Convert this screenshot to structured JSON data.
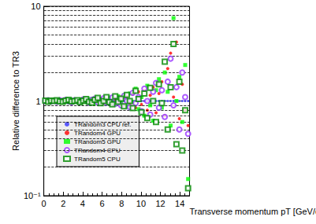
{
  "chart_data": {
    "type": "scatter",
    "x_label": "Transverse momentum pT [GeV/c]",
    "y_label": "Relative difference to TR3",
    "log": "y",
    "grid": true,
    "legend": "lower left",
    "xlim": [
      0,
      15
    ],
    "xticks": [
      0,
      2,
      4,
      6,
      8,
      10,
      12,
      14
    ],
    "ylim": [
      0.1,
      10
    ],
    "yticks": [
      {
        "value": 0.1,
        "label": "10⁻¹"
      },
      1,
      10
    ],
    "x": [
      0.15,
      0.45,
      0.75,
      1.05,
      1.35,
      1.65,
      1.95,
      2.25,
      2.55,
      2.85,
      3.15,
      3.45,
      3.75,
      4.05,
      4.35,
      4.65,
      4.95,
      5.25,
      5.55,
      5.85,
      6.15,
      6.45,
      6.75,
      7.05,
      7.35,
      7.65,
      7.95,
      8.25,
      8.55,
      8.85,
      9.15,
      9.45,
      9.75,
      10.05,
      10.35,
      10.65,
      10.95,
      11.25,
      11.55,
      11.85,
      12.15,
      12.45,
      12.75,
      13.05,
      13.35,
      13.65,
      13.95,
      14.25,
      14.55,
      14.85
    ],
    "series": [
      {
        "name": "TRandom3 CPU ref.",
        "color": "#3333ff",
        "marker": "dot",
        "values": [
          1,
          1,
          1,
          1,
          1,
          1,
          1,
          1,
          1,
          1,
          1,
          1,
          1,
          1,
          1,
          1,
          1,
          1,
          1,
          1,
          1,
          1,
          1,
          1,
          1,
          1,
          1,
          1,
          1,
          1,
          1,
          1,
          1,
          1,
          1,
          1,
          1,
          1,
          1,
          1,
          1,
          1,
          1,
          1,
          1,
          1,
          1,
          1,
          1,
          1
        ]
      },
      {
        "name": "TRandom4 GPU",
        "color": "#ff0000",
        "marker": "circle",
        "values": [
          1.01,
          0.99,
          1.0,
          1.02,
          0.98,
          1.01,
          1.0,
          0.99,
          1.02,
          1.01,
          0.98,
          1.03,
          1.0,
          0.97,
          1.04,
          1.02,
          0.96,
          1.05,
          0.98,
          1.06,
          0.95,
          1.03,
          1.08,
          0.93,
          1.05,
          0.97,
          1.1,
          0.9,
          1.12,
          0.95,
          1.18,
          0.85,
          1.25,
          0.92,
          1.3,
          0.8,
          1.15,
          1.4,
          0.75,
          1.2,
          1.6,
          0.7,
          2.2,
          3.2,
          1.1,
          4.2,
          0.65,
          1.5,
          0.8,
          0.55
        ]
      },
      {
        "name": "TRandom5 GPU",
        "color": "#00ff00",
        "marker": "square",
        "values": [
          0.99,
          1.01,
          1.0,
          0.98,
          1.02,
          1.0,
          1.01,
          0.99,
          0.97,
          1.03,
          1.01,
          0.98,
          1.04,
          1.0,
          0.97,
          1.05,
          1.02,
          0.95,
          1.07,
          0.98,
          1.04,
          0.94,
          1.09,
          1.02,
          0.92,
          1.12,
          0.96,
          1.15,
          0.88,
          1.2,
          0.98,
          1.35,
          0.82,
          1.1,
          0.7,
          1.45,
          0.9,
          0.62,
          1.3,
          1.7,
          0.85,
          2.0,
          1.25,
          0.55,
          7.5,
          1.0,
          1.8,
          0.6,
          2.4,
          0.15
        ]
      },
      {
        "name": "TRandom4 CPU",
        "color": "#9933ff",
        "marker": "open circle",
        "values": [
          1.0,
          1.02,
          0.99,
          1.01,
          0.98,
          1.02,
          1.0,
          1.03,
          0.99,
          0.97,
          1.02,
          1.0,
          0.98,
          1.04,
          1.01,
          0.96,
          1.03,
          1.06,
          0.97,
          1.02,
          1.07,
          0.96,
          1.0,
          1.09,
          0.94,
          1.05,
          0.9,
          1.13,
          1.0,
          0.86,
          1.22,
          0.95,
          1.1,
          0.78,
          1.35,
          1.0,
          0.72,
          1.25,
          1.55,
          0.85,
          1.3,
          0.68,
          1.6,
          2.8,
          0.9,
          1.4,
          0.5,
          2.0,
          1.1,
          0.45
        ]
      },
      {
        "name": "TRandom5 CPU",
        "color": "#008800",
        "marker": "open square",
        "values": [
          1.01,
          0.98,
          1.01,
          1.0,
          1.02,
          0.99,
          0.98,
          1.01,
          1.03,
          0.99,
          1.0,
          1.02,
          0.97,
          1.01,
          1.05,
          0.98,
          0.96,
          1.03,
          1.08,
          0.95,
          1.0,
          1.1,
          0.97,
          0.92,
          1.12,
          0.98,
          1.06,
          0.88,
          1.16,
          1.0,
          0.84,
          1.28,
          1.05,
          0.76,
          1.2,
          0.66,
          1.38,
          1.0,
          0.6,
          1.5,
          0.95,
          2.6,
          0.5,
          1.4,
          4.0,
          0.35,
          1.6,
          0.3,
          0.8,
          0.12
        ]
      }
    ]
  }
}
